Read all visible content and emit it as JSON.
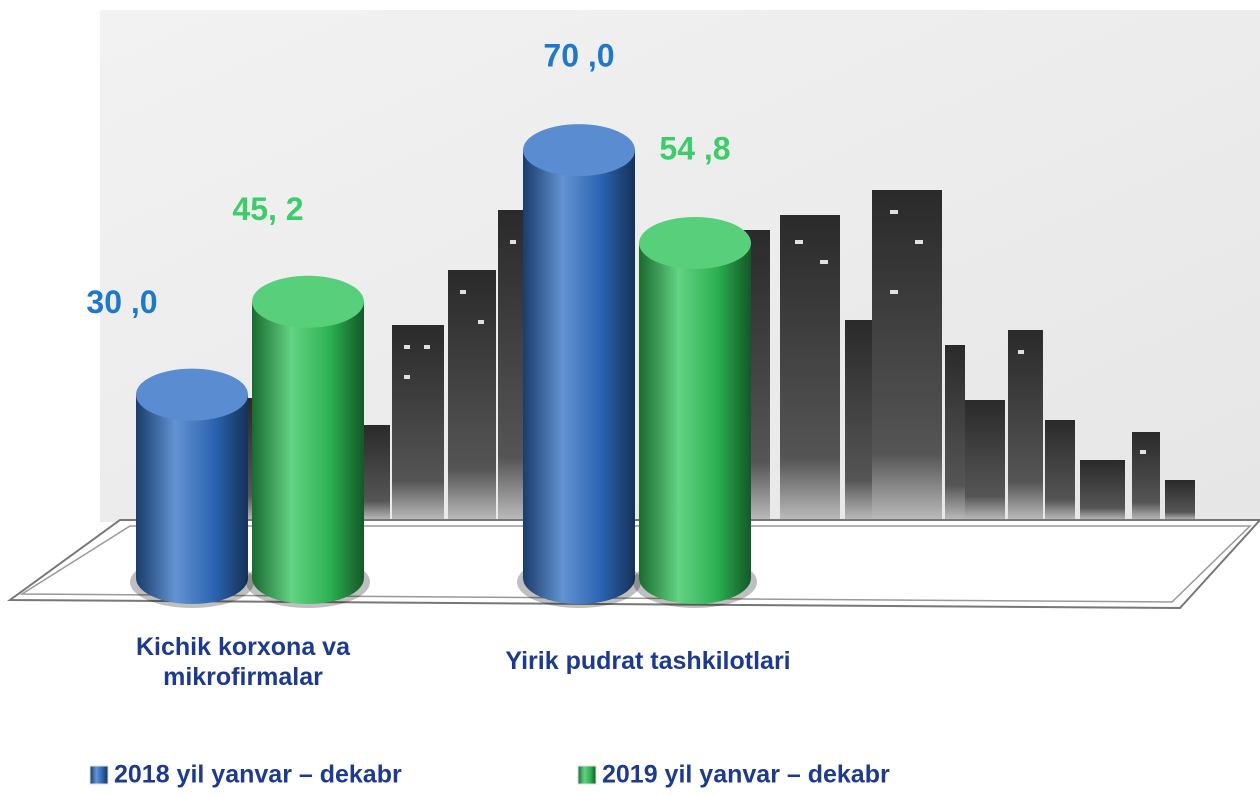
{
  "chart_data": {
    "type": "bar3d",
    "categories": [
      "Kichik korxona va mikrofirmalar",
      "Yirik pudrat tashkilotlari"
    ],
    "series": [
      {
        "name": "2018 yil yanvar – dekabr",
        "color": "#2f6fc4",
        "label_color": "#1f78c8",
        "values": [
          30.0,
          70.0
        ],
        "value_labels": [
          "30 ,0",
          "70 ,0"
        ]
      },
      {
        "name": "2019 yil yanvar – dekabr",
        "color": "#2ec45a",
        "label_color": "#3ccc6a",
        "values": [
          45.2,
          54.8
        ],
        "value_labels": [
          "45, 2",
          "54 ,8"
        ]
      }
    ],
    "ylim": [
      0,
      80
    ]
  }
}
